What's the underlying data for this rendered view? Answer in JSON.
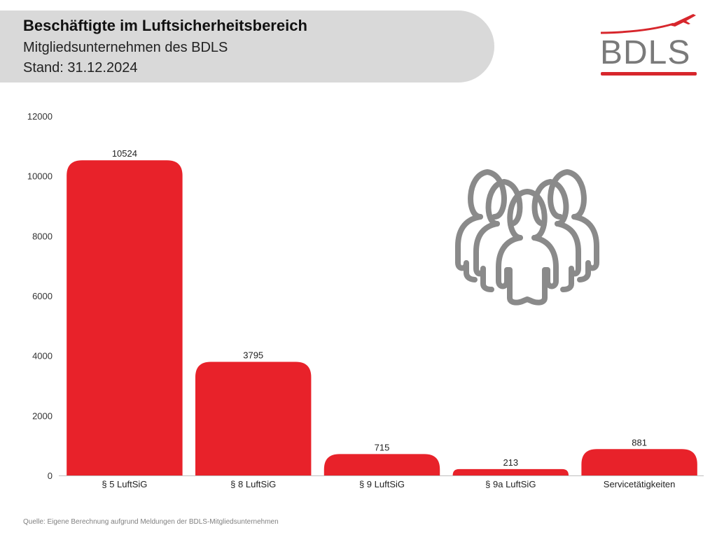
{
  "header": {
    "title": "Beschäftigte im Luftsicherheitsbereich",
    "subtitle": "Mitgliedsunternehmen des BDLS",
    "date_line": "Stand: 31.12.2024"
  },
  "logo": {
    "text": "BDLS",
    "icon": "airplane-icon",
    "accent_color": "#d7262c"
  },
  "illustration": {
    "icon": "people-group-icon",
    "color": "#8a8a8a"
  },
  "source": "Quelle: Eigene Berechnung aufgrund Meldungen der BDLS-Mitgliedsunternehmen",
  "chart_data": {
    "type": "bar",
    "categories": [
      "§ 5 LuftSiG",
      "§ 8 LuftSiG",
      "§ 9 LuftSiG",
      "§ 9a LuftSiG",
      "Servicetätigkeiten"
    ],
    "values": [
      10524,
      3795,
      715,
      213,
      881
    ],
    "data_labels": [
      "10524",
      "3795",
      "715",
      "213",
      "881"
    ],
    "ylim": [
      0,
      12000
    ],
    "yticks": [
      0,
      2000,
      4000,
      6000,
      8000,
      10000,
      12000
    ],
    "ytick_labels": [
      "0",
      "2000",
      "4000",
      "6000",
      "8000",
      "10000",
      "12000"
    ],
    "bar_color": "#e8222a",
    "grid": false,
    "legend": "none"
  }
}
